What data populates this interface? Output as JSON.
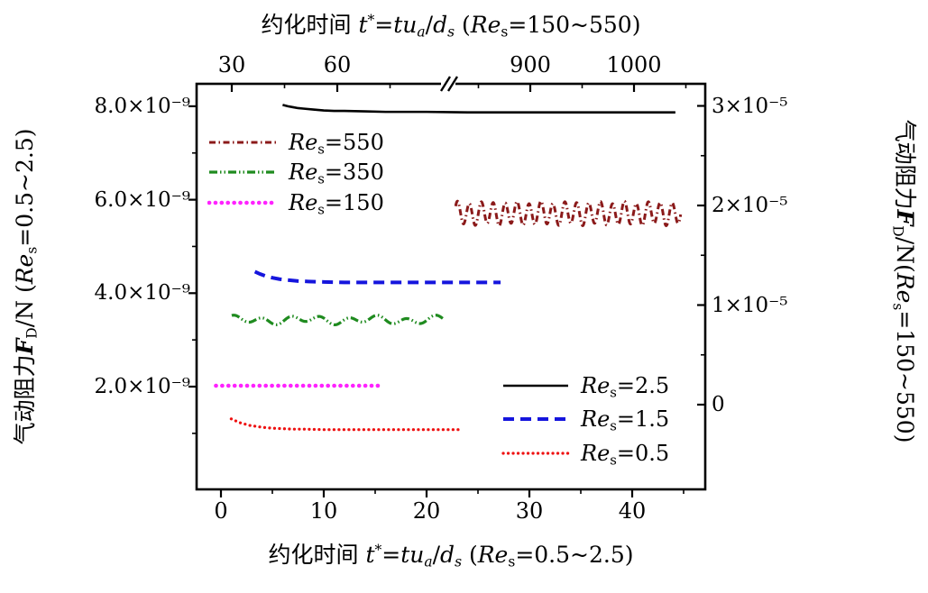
{
  "chart_data": {
    "type": "line",
    "title": "",
    "background": "#ffffff",
    "frame_color": "#000000",
    "axes": {
      "bottom": {
        "title_parts": [
          {
            "t": "约化时间 "
          },
          {
            "t": "t",
            "i": 1
          },
          {
            "t": "*",
            "sup": 1
          },
          {
            "t": "="
          },
          {
            "t": "tu",
            "i": 1
          },
          {
            "t": "a",
            "sub": 1,
            "i": 1
          },
          {
            "t": "/"
          },
          {
            "t": "d",
            "i": 1
          },
          {
            "t": "s",
            "sub": 1,
            "i": 1
          },
          {
            "t": " ("
          },
          {
            "t": "Re",
            "i": 1
          },
          {
            "t": "s",
            "sub": 1
          },
          {
            "t": "=0.5~2.5)"
          }
        ],
        "tick_labels": [
          "0",
          "10",
          "20",
          "30",
          "40"
        ],
        "tick_values": [
          0,
          10,
          20,
          30,
          40
        ],
        "minor_ticks": [
          5,
          15,
          25,
          35,
          45
        ],
        "range": [
          -2.4,
          47.1
        ],
        "grid": false
      },
      "top": {
        "title_parts": [
          {
            "t": "约化时间 "
          },
          {
            "t": "t",
            "i": 1
          },
          {
            "t": "*",
            "sup": 1
          },
          {
            "t": "="
          },
          {
            "t": "tu",
            "i": 1
          },
          {
            "t": "a",
            "sub": 1,
            "i": 1
          },
          {
            "t": "/"
          },
          {
            "t": "d",
            "i": 1
          },
          {
            "t": "s",
            "sub": 1,
            "i": 1
          },
          {
            "t": " ("
          },
          {
            "t": "Re",
            "i": 1
          },
          {
            "t": "s",
            "sub": 1
          },
          {
            "t": "=150~550)"
          }
        ],
        "has_break": true,
        "segment_a": {
          "tick_labels": [
            "30",
            "60"
          ],
          "tick_values": [
            30,
            60
          ],
          "minor_ticks": [
            45,
            75
          ],
          "range": [
            20,
            91
          ]
        },
        "segment_b": {
          "tick_labels": [
            "900",
            "1000"
          ],
          "tick_values": [
            900,
            1000
          ],
          "minor_ticks": [
            850,
            950,
            1050
          ],
          "range": [
            820,
            1069
          ]
        },
        "grid": false
      },
      "left": {
        "title_parts": [
          {
            "t": "气动阻力"
          },
          {
            "t": "F",
            "i": 1,
            "b": 1
          },
          {
            "t": "D",
            "sub": 1
          },
          {
            "t": "/N ("
          },
          {
            "t": "Re",
            "i": 1
          },
          {
            "t": "s",
            "sub": 1
          },
          {
            "t": "=0.5~2.5)"
          }
        ],
        "tick_labels": [
          "2.0×10⁻⁹",
          "4.0×10⁻⁹",
          "6.0×10⁻⁹",
          "8.0×10⁻⁹"
        ],
        "tick_values": [
          2,
          4,
          6,
          8
        ],
        "minor_ticks": [
          1,
          3,
          5,
          7
        ],
        "unit": "1e-9 N",
        "range": [
          -0.2,
          8.48
        ]
      },
      "right": {
        "title_parts": [
          {
            "t": "气动阻力"
          },
          {
            "t": "F",
            "i": 1,
            "b": 1
          },
          {
            "t": "D",
            "sub": 1
          },
          {
            "t": "/N("
          },
          {
            "t": "Re",
            "i": 1
          },
          {
            "t": "s",
            "sub": 1
          },
          {
            "t": "=150~550)"
          }
        ],
        "tick_labels": [
          "0",
          "1×10⁻⁵",
          "2×10⁻⁵",
          "3×10⁻⁵"
        ],
        "tick_values": [
          0,
          1,
          2,
          3
        ],
        "minor_ticks": [
          0.5,
          1.5,
          2.5
        ],
        "unit": "1e-5 N",
        "range": [
          -0.85,
          3.22
        ]
      }
    },
    "series": [
      {
        "id": "Res2.5",
        "color": "#000000",
        "pattern": "solid",
        "width": 2.6,
        "x_axis": "bottom",
        "y_axis": "left",
        "points": {
          "t": [
            6.0,
            6.5,
            7.0,
            7.5,
            8.0,
            9.0,
            10.0,
            11.0,
            12.0,
            14.0,
            16.0,
            18.0,
            20.0,
            24.0,
            28.0,
            32.0,
            36.0,
            40.0,
            44.2
          ],
          "v": [
            8.03,
            8.0,
            7.98,
            7.96,
            7.95,
            7.93,
            7.91,
            7.9,
            7.9,
            7.89,
            7.88,
            7.88,
            7.88,
            7.87,
            7.87,
            7.87,
            7.87,
            7.87,
            7.87
          ]
        }
      },
      {
        "id": "Res1.5",
        "color": "#1515DD",
        "pattern": "dashed",
        "width": 4,
        "x_axis": "bottom",
        "y_axis": "left",
        "points": {
          "t": [
            3.3,
            3.8,
            4.3,
            5.0,
            5.7,
            6.5,
            7.5,
            8.5,
            10.0,
            12.0,
            14.0,
            16.0,
            18.0,
            20.0,
            22.0,
            24.0,
            26.0,
            27.2
          ],
          "v": [
            4.46,
            4.41,
            4.37,
            4.33,
            4.3,
            4.28,
            4.26,
            4.25,
            4.24,
            4.23,
            4.23,
            4.23,
            4.23,
            4.23,
            4.23,
            4.23,
            4.23,
            4.23
          ]
        }
      },
      {
        "id": "Res0.5",
        "color": "#EE1111",
        "pattern": "dotted",
        "width": 3.2,
        "x_axis": "bottom",
        "y_axis": "left",
        "points": {
          "t": [
            1.0,
            1.4,
            1.8,
            2.3,
            2.8,
            3.4,
            4.0,
            5.0,
            6.0,
            7.0,
            8.0,
            10.0,
            12.0,
            14.0,
            16.0,
            18.0,
            20.0,
            22.0,
            23.5
          ],
          "v": [
            1.31,
            1.27,
            1.23,
            1.2,
            1.17,
            1.15,
            1.13,
            1.11,
            1.1,
            1.09,
            1.09,
            1.08,
            1.08,
            1.08,
            1.08,
            1.08,
            1.08,
            1.08,
            1.08
          ]
        }
      },
      {
        "id": "Res150",
        "color": "#FF22FF",
        "pattern": "dotted",
        "width": 4.6,
        "x_axis": "top",
        "y_axis": "right",
        "points": {
          "t": [
            25.5,
            72.5
          ],
          "v": [
            0.19,
            0.19
          ]
        }
      },
      {
        "id": "Res350",
        "color": "#1F8B1F",
        "pattern": "dash-dot-dot",
        "width": 3.2,
        "x_axis": "top",
        "y_axis": "right",
        "oscillation": {
          "t_start": 30,
          "t_end": 90,
          "mean": 0.85,
          "amplitude": 0.032,
          "period": 8.2,
          "phase": 1.2,
          "irregular": 0.55
        }
      },
      {
        "id": "Res550",
        "color": "#8B1A1A",
        "pattern": "dash-dot",
        "width": 3,
        "x_axis": "top",
        "y_axis": "right",
        "oscillation": {
          "t_start": 828,
          "t_end": 1045,
          "mean": 1.92,
          "amplitude": 0.11,
          "period": 11.5,
          "phase": 0.6,
          "irregular": 0.12
        }
      }
    ],
    "legends": [
      {
        "id": "top-left",
        "entries": [
          {
            "series": "Res550",
            "label_parts": [
              {
                "t": "Re",
                "i": 1
              },
              {
                "t": "s",
                "sub": 1
              },
              {
                "t": "=550"
              }
            ]
          },
          {
            "series": "Res350",
            "label_parts": [
              {
                "t": "Re",
                "i": 1
              },
              {
                "t": "s",
                "sub": 1
              },
              {
                "t": "=350"
              }
            ]
          },
          {
            "series": "Res150",
            "label_parts": [
              {
                "t": "Re",
                "i": 1
              },
              {
                "t": "s",
                "sub": 1
              },
              {
                "t": "=150"
              }
            ]
          }
        ]
      },
      {
        "id": "bottom-right",
        "entries": [
          {
            "series": "Res2.5",
            "label_parts": [
              {
                "t": "Re",
                "i": 1
              },
              {
                "t": "s",
                "sub": 1
              },
              {
                "t": "=2.5"
              }
            ]
          },
          {
            "series": "Res1.5",
            "label_parts": [
              {
                "t": "Re",
                "i": 1
              },
              {
                "t": "s",
                "sub": 1
              },
              {
                "t": "=1.5"
              }
            ]
          },
          {
            "series": "Res0.5",
            "label_parts": [
              {
                "t": "Re",
                "i": 1
              },
              {
                "t": "s",
                "sub": 1
              },
              {
                "t": "=0.5"
              }
            ]
          }
        ]
      }
    ]
  }
}
